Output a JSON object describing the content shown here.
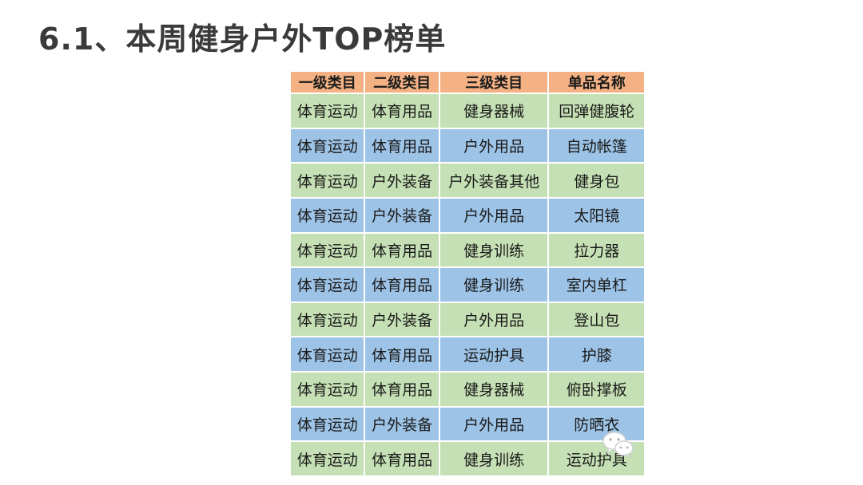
{
  "page": {
    "title": "6.1、本周健身户外TOP榜单"
  },
  "table": {
    "headers": [
      "一级类目",
      "二级类目",
      "三级类目",
      "单品名称"
    ],
    "rows": [
      [
        "体育运动",
        "体育用品",
        "健身器械",
        "回弹健腹轮"
      ],
      [
        "体育运动",
        "体育用品",
        "户外用品",
        "自动帐篷"
      ],
      [
        "体育运动",
        "户外装备",
        "户外装备其他",
        "健身包"
      ],
      [
        "体育运动",
        "户外装备",
        "户外用品",
        "太阳镜"
      ],
      [
        "体育运动",
        "体育用品",
        "健身训练",
        "拉力器"
      ],
      [
        "体育运动",
        "体育用品",
        "健身训练",
        "室内单杠"
      ],
      [
        "体育运动",
        "户外装备",
        "户外用品",
        "登山包"
      ],
      [
        "体育运动",
        "体育用品",
        "运动护具",
        "护膝"
      ],
      [
        "体育运动",
        "体育用品",
        "健身器械",
        "俯卧撑板"
      ],
      [
        "体育运动",
        "户外装备",
        "户外用品",
        "防晒衣"
      ],
      [
        "体育运动",
        "体育用品",
        "健身训练",
        "运动护具"
      ]
    ],
    "colors": {
      "header": "#f4b183",
      "row_green": "#c5e0b4",
      "row_blue": "#9dc3e6"
    }
  },
  "watermark": {
    "icon": "wechat-icon"
  }
}
